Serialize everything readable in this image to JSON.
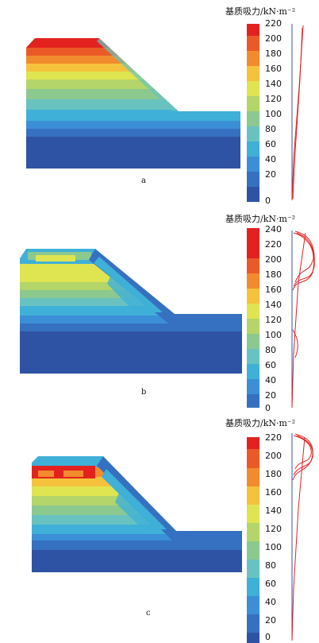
{
  "colorbar_title": "基质吸力/kN·m⁻²",
  "palette": [
    "#2f53a4",
    "#3571c0",
    "#3b8fd6",
    "#3fb0d8",
    "#68c3c0",
    "#8cc98f",
    "#b3d569",
    "#dfe451",
    "#f5c23c",
    "#f28b2d",
    "#eb5a26",
    "#e3221f"
  ],
  "panels": [
    {
      "label": "a",
      "ticks": [
        "0",
        "20",
        "40",
        "60",
        "80",
        "100",
        "120",
        "140",
        "160",
        "180",
        "200",
        "220"
      ]
    },
    {
      "label": "b",
      "ticks": [
        "0",
        "20",
        "40",
        "60",
        "80",
        "100",
        "120",
        "140",
        "160",
        "180",
        "200",
        "220",
        "240"
      ]
    },
    {
      "label": "c",
      "ticks": [
        "0",
        "20",
        "40",
        "60",
        "80",
        "100",
        "120",
        "140",
        "160",
        "180",
        "200",
        "220"
      ]
    }
  ]
}
